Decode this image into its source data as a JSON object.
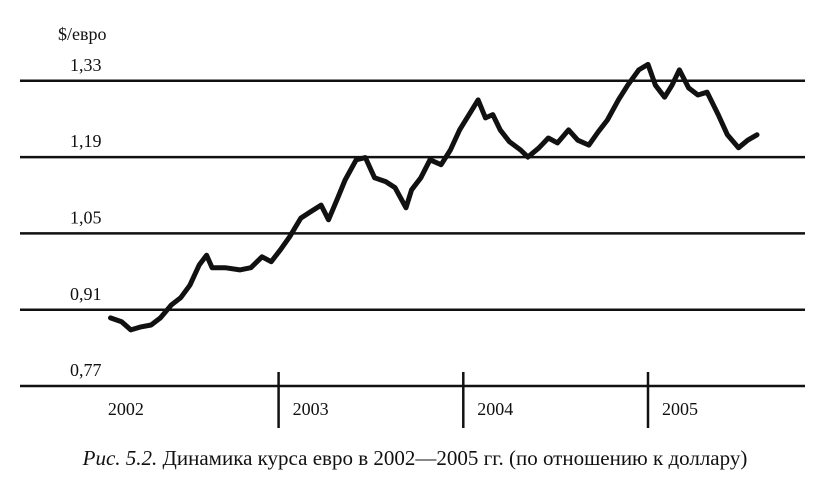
{
  "chart_data": {
    "type": "line",
    "y_label": "$/евро",
    "caption_prefix": "Рис. 5.2.",
    "caption": "Динамика курса евро в 2002—2005 гг. (по отношению к доллару)",
    "xlim": [
      2001.6,
      2005.85
    ],
    "xticks": [
      2003,
      2004,
      2005
    ],
    "xlabels": [
      {
        "value": 2002,
        "label": "2002"
      },
      {
        "value": 2003,
        "label": "2003"
      },
      {
        "value": 2004,
        "label": "2004"
      },
      {
        "value": 2005,
        "label": "2005"
      }
    ],
    "ylim": [
      0.77,
      1.37
    ],
    "yticks": [
      {
        "value": 0.77,
        "label": "0,77"
      },
      {
        "value": 0.91,
        "label": "0,91"
      },
      {
        "value": 1.05,
        "label": "1,05"
      },
      {
        "value": 1.19,
        "label": "1,19"
      },
      {
        "value": 1.33,
        "label": "1,33"
      }
    ],
    "grid": true,
    "color": "#111111",
    "x": [
      2002.09,
      2002.15,
      2002.2,
      2002.25,
      2002.31,
      2002.36,
      2002.42,
      2002.47,
      2002.52,
      2002.57,
      2002.61,
      2002.64,
      2002.71,
      2002.79,
      2002.85,
      2002.91,
      2002.96,
      2003.01,
      2003.06,
      2003.12,
      2003.17,
      2003.23,
      2003.27,
      2003.32,
      2003.36,
      2003.42,
      2003.47,
      2003.52,
      2003.58,
      2003.63,
      2003.69,
      2003.72,
      2003.77,
      2003.82,
      2003.88,
      2003.93,
      2003.98,
      2004.04,
      2004.08,
      2004.12,
      2004.16,
      2004.2,
      2004.25,
      2004.31,
      2004.35,
      2004.41,
      2004.46,
      2004.51,
      2004.57,
      2004.62,
      2004.68,
      2004.73,
      2004.78,
      2004.84,
      2004.89,
      2004.95,
      2005.0,
      2005.04,
      2005.09,
      2005.13,
      2005.17,
      2005.22,
      2005.27,
      2005.32,
      2005.38,
      2005.43,
      2005.49,
      2005.54,
      2005.59
    ],
    "values": [
      0.895,
      0.888,
      0.873,
      0.878,
      0.882,
      0.895,
      0.919,
      0.932,
      0.955,
      0.992,
      1.01,
      0.987,
      0.987,
      0.983,
      0.987,
      1.007,
      0.998,
      1.02,
      1.044,
      1.078,
      1.089,
      1.102,
      1.075,
      1.115,
      1.148,
      1.185,
      1.189,
      1.152,
      1.145,
      1.134,
      1.097,
      1.13,
      1.152,
      1.185,
      1.176,
      1.203,
      1.24,
      1.273,
      1.295,
      1.262,
      1.268,
      1.24,
      1.218,
      1.203,
      1.19,
      1.207,
      1.225,
      1.216,
      1.24,
      1.221,
      1.212,
      1.236,
      1.258,
      1.295,
      1.322,
      1.35,
      1.36,
      1.322,
      1.3,
      1.322,
      1.35,
      1.317,
      1.304,
      1.309,
      1.268,
      1.231,
      1.207,
      1.221,
      1.231
    ]
  }
}
